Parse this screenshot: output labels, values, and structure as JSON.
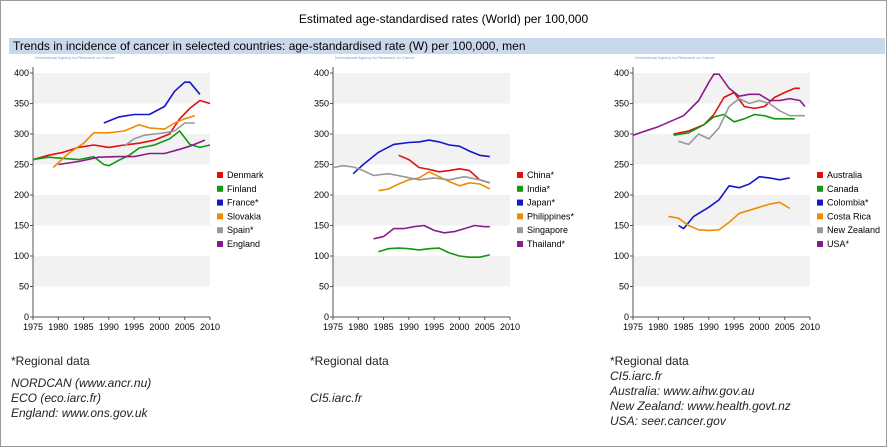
{
  "title": "Estimated age-standardised rates (World) per 100,000",
  "subtitle": "Trends in incidence of cancer in selected countries: age-standardised rate (W) per 100,000, men",
  "credit": "International Agency for Research on Cancer",
  "panels": [
    {
      "regional_note": "*Regional data",
      "sources": [
        "NORDCAN (www.ancr.nu)",
        "ECO (eco.iarc.fr)",
        "England: www.ons.gov.uk"
      ]
    },
    {
      "regional_note": "*Regional data",
      "sources": [
        "CI5.iarc.fr"
      ]
    },
    {
      "regional_note": "*Regional data",
      "sources": [
        "CI5.iarc.fr",
        "Australia: www.aihw.gov.au",
        "New Zealand: www.health.govt.nz",
        "USA: seer.cancer.gov"
      ]
    }
  ],
  "chart_data": [
    {
      "type": "line",
      "xlim": [
        1975,
        2010
      ],
      "ylim": [
        0,
        400
      ],
      "xticks": [
        1975,
        1980,
        1985,
        1990,
        1995,
        2000,
        2005,
        2010
      ],
      "yticks": [
        0,
        50,
        100,
        150,
        200,
        250,
        300,
        350,
        400
      ],
      "legend_position": "right",
      "series": [
        {
          "name": "Denmark",
          "color": "#e01010",
          "x": [
            1975,
            1978,
            1981,
            1984,
            1987,
            1990,
            1993,
            1996,
            1999,
            2002,
            2004,
            2006,
            2008,
            2010
          ],
          "y": [
            258,
            265,
            270,
            278,
            282,
            278,
            282,
            285,
            290,
            300,
            325,
            342,
            355,
            350
          ]
        },
        {
          "name": "Finland",
          "color": "#119911",
          "x": [
            1975,
            1978,
            1981,
            1984,
            1987,
            1989,
            1990,
            1992,
            1994,
            1996,
            1999,
            2002,
            2004,
            2006,
            2008,
            2010
          ],
          "y": [
            258,
            262,
            260,
            258,
            263,
            250,
            248,
            257,
            265,
            277,
            282,
            292,
            305,
            283,
            278,
            282
          ]
        },
        {
          "name": "France*",
          "color": "#1515cc",
          "x": [
            1989,
            1992,
            1995,
            1998,
            2001,
            2003,
            2005,
            2006,
            2008
          ],
          "y": [
            318,
            328,
            332,
            332,
            345,
            370,
            385,
            385,
            365
          ]
        },
        {
          "name": "Slovakia",
          "color": "#f08c00",
          "x": [
            1979,
            1982,
            1985,
            1987,
            1990,
            1993,
            1996,
            1998,
            2001,
            2003,
            2005,
            2007
          ],
          "y": [
            245,
            268,
            285,
            302,
            302,
            305,
            315,
            310,
            308,
            318,
            325,
            330
          ]
        },
        {
          "name": "Spain*",
          "color": "#999999",
          "x": [
            1993,
            1995,
            1997,
            1999,
            2001,
            2003,
            2005,
            2007
          ],
          "y": [
            280,
            292,
            298,
            300,
            302,
            305,
            318,
            318
          ]
        },
        {
          "name": "England",
          "color": "#8b1a8b",
          "x": [
            1980,
            1984,
            1988,
            1992,
            1995,
            1998,
            2001,
            2004,
            2006,
            2009
          ],
          "y": [
            250,
            255,
            262,
            263,
            263,
            268,
            268,
            275,
            280,
            290
          ]
        }
      ]
    },
    {
      "type": "line",
      "xlim": [
        1975,
        2010
      ],
      "ylim": [
        0,
        400
      ],
      "xticks": [
        1975,
        1980,
        1985,
        1990,
        1995,
        2000,
        2005,
        2010
      ],
      "yticks": [
        0,
        50,
        100,
        150,
        200,
        250,
        300,
        350,
        400
      ],
      "legend_position": "right",
      "series": [
        {
          "name": "China*",
          "color": "#e01010",
          "x": [
            1988,
            1990,
            1992,
            1994,
            1996,
            1998,
            2000,
            2002,
            2004,
            2006
          ],
          "y": [
            265,
            258,
            245,
            242,
            238,
            240,
            243,
            240,
            225,
            220
          ]
        },
        {
          "name": "India*",
          "color": "#119911",
          "x": [
            1984,
            1986,
            1988,
            1990,
            1992,
            1994,
            1996,
            1998,
            2000,
            2002,
            2004,
            2006
          ],
          "y": [
            107,
            112,
            113,
            112,
            110,
            112,
            113,
            105,
            100,
            98,
            98,
            102
          ]
        },
        {
          "name": "Japan*",
          "color": "#1515cc",
          "x": [
            1979,
            1981,
            1984,
            1987,
            1990,
            1992,
            1994,
            1996,
            1998,
            2000,
            2002,
            2004,
            2006
          ],
          "y": [
            235,
            250,
            270,
            283,
            286,
            287,
            290,
            287,
            282,
            280,
            272,
            265,
            263
          ]
        },
        {
          "name": "Philippines*",
          "color": "#f08c00",
          "x": [
            1984,
            1986,
            1988,
            1990,
            1992,
            1994,
            1996,
            1998,
            2000,
            2002,
            2004,
            2006
          ],
          "y": [
            207,
            210,
            218,
            225,
            228,
            238,
            230,
            222,
            215,
            220,
            218,
            210
          ]
        },
        {
          "name": "Singapore",
          "color": "#999999",
          "x": [
            1975,
            1977,
            1979,
            1981,
            1983,
            1986,
            1989,
            1992,
            1995,
            1998,
            2001,
            2004,
            2006
          ],
          "y": [
            245,
            248,
            246,
            240,
            232,
            235,
            230,
            225,
            228,
            225,
            230,
            225,
            220
          ]
        },
        {
          "name": "Thailand*",
          "color": "#8b1a8b",
          "x": [
            1983,
            1985,
            1987,
            1989,
            1991,
            1993,
            1995,
            1997,
            1999,
            2001,
            2003,
            2005,
            2006
          ],
          "y": [
            128,
            132,
            145,
            145,
            148,
            150,
            142,
            138,
            140,
            145,
            150,
            148,
            148
          ]
        }
      ]
    },
    {
      "type": "line",
      "xlim": [
        1975,
        2010
      ],
      "ylim": [
        0,
        400
      ],
      "xticks": [
        1975,
        1980,
        1985,
        1990,
        1995,
        2000,
        2005,
        2010
      ],
      "yticks": [
        0,
        50,
        100,
        150,
        200,
        250,
        300,
        350,
        400
      ],
      "legend_position": "right",
      "series": [
        {
          "name": "Australia",
          "color": "#e01010",
          "x": [
            1983,
            1986,
            1989,
            1991,
            1993,
            1995,
            1997,
            1999,
            2001,
            2003,
            2005,
            2007,
            2008
          ],
          "y": [
            300,
            305,
            315,
            332,
            360,
            368,
            345,
            342,
            345,
            360,
            368,
            375,
            375
          ]
        },
        {
          "name": "Canada",
          "color": "#119911",
          "x": [
            1983,
            1986,
            1989,
            1991,
            1993,
            1995,
            1997,
            1999,
            2001,
            2003,
            2005,
            2007
          ],
          "y": [
            298,
            302,
            315,
            328,
            332,
            320,
            325,
            332,
            330,
            325,
            325,
            325
          ]
        },
        {
          "name": "Colombia*",
          "color": "#1515cc",
          "x": [
            1984,
            1985,
            1987,
            1990,
            1992,
            1994,
            1996,
            1998,
            2000,
            2002,
            2004,
            2006
          ],
          "y": [
            150,
            145,
            165,
            180,
            192,
            215,
            212,
            218,
            230,
            228,
            225,
            228
          ]
        },
        {
          "name": "Costa Rica",
          "color": "#f08c00",
          "x": [
            1982,
            1984,
            1986,
            1988,
            1990,
            1992,
            1994,
            1996,
            1998,
            2000,
            2002,
            2004,
            2006
          ],
          "y": [
            165,
            162,
            150,
            143,
            142,
            143,
            155,
            170,
            175,
            180,
            185,
            188,
            178
          ]
        },
        {
          "name": "New Zealand",
          "color": "#999999",
          "x": [
            1984,
            1986,
            1988,
            1990,
            1992,
            1994,
            1996,
            1998,
            2000,
            2002,
            2004,
            2006,
            2008,
            2009
          ],
          "y": [
            288,
            283,
            300,
            292,
            310,
            345,
            358,
            350,
            355,
            350,
            338,
            330,
            330,
            330
          ]
        },
        {
          "name": "USA*",
          "color": "#8b1a8b",
          "x": [
            1975,
            1980,
            1985,
            1988,
            1990,
            1991,
            1992,
            1994,
            1996,
            1998,
            2000,
            2002,
            2004,
            2006,
            2008,
            2009
          ],
          "y": [
            298,
            312,
            330,
            355,
            385,
            398,
            398,
            375,
            362,
            365,
            365,
            355,
            355,
            358,
            355,
            345
          ]
        }
      ]
    }
  ]
}
